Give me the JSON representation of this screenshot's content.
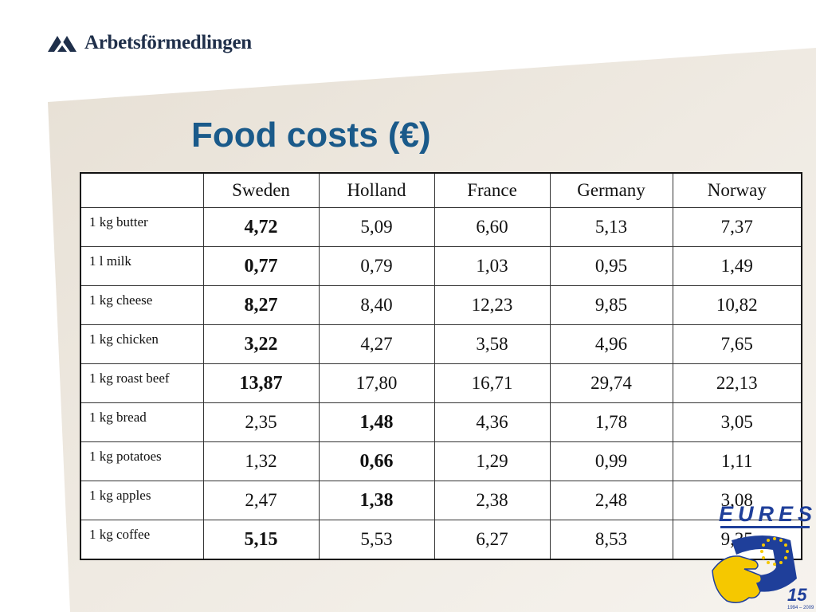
{
  "logo": {
    "text": "Arbetsförmedlingen"
  },
  "title": "Food costs (€)",
  "table": {
    "headers": [
      "",
      "Sweden",
      "Holland",
      "France",
      "Germany",
      "Norway"
    ],
    "rows": [
      {
        "item": "1 kg butter",
        "values": [
          "4,72",
          "5,09",
          "6,60",
          "5,13",
          "7,37"
        ],
        "lowest": 0
      },
      {
        "item": "1 l milk",
        "values": [
          "0,77",
          "0,79",
          "1,03",
          "0,95",
          "1,49"
        ],
        "lowest": 0
      },
      {
        "item": "1 kg cheese",
        "values": [
          "8,27",
          "8,40",
          "12,23",
          "9,85",
          "10,82"
        ],
        "lowest": 0
      },
      {
        "item": "1 kg chicken",
        "values": [
          "3,22",
          "4,27",
          "3,58",
          "4,96",
          "7,65"
        ],
        "lowest": 0
      },
      {
        "item": "1 kg roast beef",
        "values": [
          "13,87",
          "17,80",
          "16,71",
          "29,74",
          "22,13"
        ],
        "lowest": 0
      },
      {
        "item": "1 kg bread",
        "values": [
          "2,35",
          "1,48",
          "4,36",
          "1,78",
          "3,05"
        ],
        "lowest": 1
      },
      {
        "item": "1 kg potatoes",
        "values": [
          "1,32",
          "0,66",
          "1,29",
          "0,99",
          "1,11"
        ],
        "lowest": 1
      },
      {
        "item": "1 kg apples",
        "values": [
          "2,47",
          "1,38",
          "2,38",
          "2,48",
          "3,08"
        ],
        "lowest": 1
      },
      {
        "item": "1 kg coffee",
        "values": [
          "5,15",
          "5,53",
          "6,27",
          "8,53",
          "9,35"
        ],
        "lowest": 0
      }
    ]
  },
  "eures": {
    "text": "EURES",
    "badge": "15",
    "years": "1994 – 2009"
  },
  "colors": {
    "title": "#1a5a8a",
    "logo": "#1f2f4a",
    "panel": "#efe9df",
    "eures_blue": "#1f3f9a",
    "eures_yellow": "#f5c800"
  }
}
